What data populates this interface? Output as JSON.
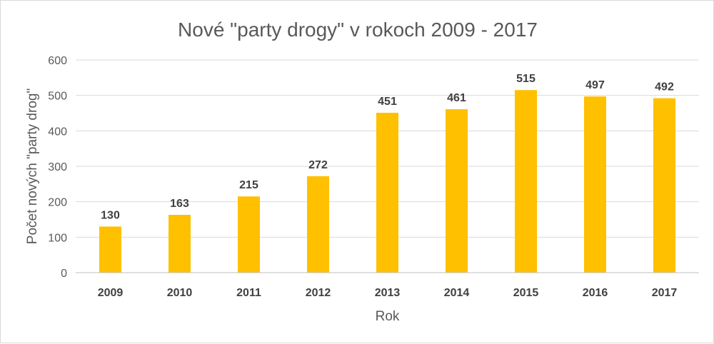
{
  "chart_data": {
    "type": "bar",
    "title": "Nové \"party drogy\" v rokoch 2009 - 2017",
    "xlabel": "Rok",
    "ylabel": "Počet nových \"party drog\"",
    "categories": [
      "2009",
      "2010",
      "2011",
      "2012",
      "2013",
      "2014",
      "2015",
      "2016",
      "2017"
    ],
    "values": [
      130,
      163,
      215,
      272,
      451,
      461,
      515,
      497,
      492
    ],
    "ylim": [
      0,
      600
    ],
    "yticks": [
      0,
      100,
      200,
      300,
      400,
      500,
      600
    ],
    "grid": true,
    "legend": "none",
    "bar_color": "#FFC000"
  }
}
